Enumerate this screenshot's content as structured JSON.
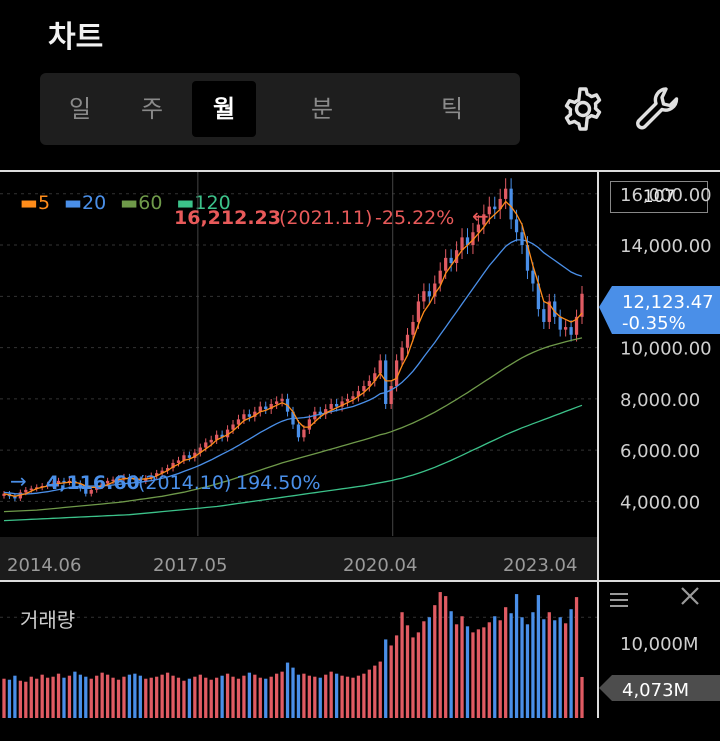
{
  "header": {
    "title": "차트"
  },
  "period_tabs": [
    {
      "label": "일",
      "active": false
    },
    {
      "label": "주",
      "active": false
    },
    {
      "label": "월",
      "active": true
    },
    {
      "label": "분",
      "active": false
    },
    {
      "label": "틱",
      "active": false
    }
  ],
  "icons": {
    "settings": "gear-icon",
    "tools": "wrench-icon"
  },
  "visible_count": "107",
  "legend": [
    {
      "label": "5",
      "color": "#ff8c1a"
    },
    {
      "label": "20",
      "color": "#4a8fe8"
    },
    {
      "label": "60",
      "color": "#6f9a4a"
    },
    {
      "label": "120",
      "color": "#3cc28a"
    }
  ],
  "max_marker": {
    "value": "16,212.23",
    "date": "(2021.11)",
    "change": "-25.22%",
    "arrow": "←"
  },
  "min_marker": {
    "value": "4,116.60",
    "date": "(2014.10)",
    "change": "194.50%",
    "arrow": "→"
  },
  "current_price": {
    "value": "12,123.47",
    "change": "-0.35%"
  },
  "volume": {
    "label": "거래량",
    "axis_tick": "10,000M",
    "current": "4,073M"
  },
  "chart_data": {
    "type": "candlestick",
    "y_ticks": [
      "16,000.00",
      "14,000.00",
      "12,000.00",
      "10,000.00",
      "8,000.00",
      "6,000.00",
      "4,000.00"
    ],
    "y_tick_values": [
      16000,
      14000,
      12000,
      10000,
      8000,
      6000,
      4000
    ],
    "ylim": [
      2650,
      16850
    ],
    "x_labels": [
      "2014.06",
      "2017.05",
      "2020.04",
      "2023.04"
    ],
    "x_label_index": [
      0,
      35,
      70,
      106
    ],
    "close": [
      4300,
      4200,
      4116,
      4350,
      4450,
      4500,
      4550,
      4600,
      4650,
      4700,
      4800,
      4750,
      4800,
      4700,
      4500,
      4300,
      4450,
      4600,
      4700,
      4800,
      4850,
      4900,
      4950,
      4900,
      4850,
      4800,
      4900,
      5000,
      5100,
      5200,
      5300,
      5500,
      5600,
      5800,
      5700,
      5900,
      6100,
      6300,
      6400,
      6600,
      6500,
      6800,
      7000,
      7200,
      7400,
      7300,
      7500,
      7700,
      7600,
      7800,
      7900,
      8000,
      7500,
      7000,
      6500,
      6800,
      7200,
      7500,
      7400,
      7600,
      7800,
      7700,
      7900,
      8000,
      8100,
      8300,
      8500,
      8700,
      9000,
      9500,
      7800,
      8500,
      9500,
      10000,
      10500,
      11000,
      11800,
      12200,
      12000,
      12500,
      13000,
      13500,
      13300,
      13800,
      14300,
      14000,
      14500,
      14800,
      15200,
      15500,
      15400,
      15800,
      16200,
      15000,
      14500,
      14000,
      13000,
      12500,
      11500,
      11000,
      11800,
      11200,
      10700,
      10800,
      10500,
      11200,
      12100
    ],
    "ma5": [
      4300,
      4250,
      4200,
      4250,
      4300,
      4400,
      4500,
      4550,
      4600,
      4650,
      4700,
      4720,
      4750,
      4740,
      4700,
      4600,
      4550,
      4550,
      4600,
      4650,
      4750,
      4850,
      4880,
      4900,
      4880,
      4860,
      4880,
      4900,
      5000,
      5100,
      5200,
      5350,
      5450,
      5600,
      5650,
      5750,
      5900,
      6050,
      6200,
      6400,
      6500,
      6600,
      6750,
      6950,
      7150,
      7250,
      7350,
      7500,
      7550,
      7650,
      7750,
      7850,
      7750,
      7500,
      7100,
      6900,
      6900,
      7100,
      7300,
      7450,
      7550,
      7650,
      7750,
      7850,
      7950,
      8100,
      8250,
      8450,
      8700,
      9000,
      8700,
      8700,
      8800,
      9300,
      9700,
      10300,
      10900,
      11400,
      11700,
      12100,
      12400,
      12900,
      13200,
      13500,
      13800,
      14000,
      14200,
      14450,
      14700,
      15000,
      15200,
      15400,
      15700,
      15500,
      15200,
      14800,
      14000,
      13200,
      12500,
      11800,
      11700,
      11400,
      11200,
      11100,
      11000,
      11100,
      11350
    ],
    "ma20": [
      4350,
      4330,
      4300,
      4290,
      4290,
      4300,
      4320,
      4350,
      4380,
      4420,
      4460,
      4500,
      4540,
      4570,
      4590,
      4600,
      4600,
      4600,
      4610,
      4620,
      4640,
      4660,
      4690,
      4710,
      4730,
      4750,
      4780,
      4810,
      4850,
      4900,
      4950,
      5020,
      5090,
      5170,
      5250,
      5330,
      5420,
      5520,
      5620,
      5730,
      5840,
      5950,
      6060,
      6180,
      6310,
      6430,
      6560,
      6690,
      6800,
      6920,
      7030,
      7130,
      7200,
      7240,
      7250,
      7270,
      7300,
      7350,
      7400,
      7450,
      7500,
      7550,
      7600,
      7650,
      7700,
      7780,
      7860,
      7950,
      8060,
      8200,
      8250,
      8350,
      8480,
      8650,
      8850,
      9080,
      9350,
      9640,
      9920,
      10200,
      10500,
      10800,
      11100,
      11400,
      11700,
      12000,
      12300,
      12600,
      12900,
      13200,
      13450,
      13700,
      13950,
      14100,
      14200,
      14200,
      14150,
      14050,
      13900,
      13700,
      13550,
      13400,
      13250,
      13100,
      12950,
      12850,
      12780
    ],
    "ma60": [
      3600,
      3610,
      3620,
      3630,
      3640,
      3650,
      3660,
      3680,
      3700,
      3720,
      3740,
      3760,
      3780,
      3800,
      3820,
      3840,
      3860,
      3880,
      3900,
      3920,
      3940,
      3960,
      3990,
      4020,
      4050,
      4080,
      4110,
      4140,
      4170,
      4200,
      4240,
      4280,
      4320,
      4360,
      4410,
      4460,
      4510,
      4560,
      4620,
      4680,
      4740,
      4800,
      4870,
      4940,
      5010,
      5080,
      5150,
      5220,
      5290,
      5360,
      5430,
      5500,
      5560,
      5620,
      5680,
      5740,
      5800,
      5860,
      5920,
      5980,
      6040,
      6100,
      6160,
      6220,
      6280,
      6340,
      6400,
      6460,
      6530,
      6600,
      6650,
      6720,
      6800,
      6880,
      6970,
      7060,
      7160,
      7260,
      7370,
      7480,
      7600,
      7720,
      7850,
      7980,
      8110,
      8240,
      8380,
      8520,
      8660,
      8800,
      8940,
      9080,
      9220,
      9350,
      9480,
      9600,
      9710,
      9810,
      9900,
      9980,
      10050,
      10110,
      10170,
      10230,
      10280,
      10330,
      10380
    ],
    "ma120": [
      3250,
      3260,
      3270,
      3280,
      3290,
      3300,
      3310,
      3320,
      3330,
      3340,
      3350,
      3360,
      3370,
      3380,
      3390,
      3400,
      3410,
      3420,
      3430,
      3440,
      3450,
      3460,
      3470,
      3480,
      3500,
      3520,
      3540,
      3560,
      3580,
      3600,
      3620,
      3640,
      3660,
      3680,
      3700,
      3720,
      3740,
      3760,
      3780,
      3800,
      3830,
      3860,
      3890,
      3920,
      3950,
      3980,
      4010,
      4040,
      4070,
      4100,
      4130,
      4160,
      4190,
      4220,
      4250,
      4280,
      4310,
      4340,
      4370,
      4400,
      4430,
      4460,
      4490,
      4520,
      4550,
      4580,
      4610,
      4650,
      4690,
      4730,
      4770,
      4810,
      4860,
      4910,
      4970,
      5030,
      5100,
      5170,
      5250,
      5330,
      5420,
      5510,
      5600,
      5700,
      5800,
      5900,
      6000,
      6100,
      6200,
      6300,
      6400,
      6500,
      6600,
      6690,
      6780,
      6870,
      6950,
      7030,
      7110,
      7190,
      7270,
      7350,
      7430,
      7510,
      7590,
      7670,
      7750
    ],
    "volume_ylim": [
      0,
      13500
    ],
    "volume": [
      3900,
      3800,
      4200,
      3700,
      3600,
      4100,
      3900,
      4300,
      4000,
      4100,
      4400,
      4000,
      4200,
      4600,
      4300,
      4100,
      3900,
      4200,
      4500,
      4300,
      4000,
      3800,
      4100,
      4300,
      4400,
      4200,
      3900,
      4000,
      4100,
      4300,
      4500,
      4200,
      4000,
      3700,
      3900,
      4100,
      4300,
      4000,
      3800,
      4000,
      4200,
      4400,
      4100,
      3900,
      4200,
      4500,
      4300,
      4000,
      3900,
      4100,
      4400,
      4600,
      5500,
      5000,
      4300,
      4400,
      4200,
      4100,
      4000,
      4300,
      4600,
      4400,
      4200,
      4100,
      4000,
      4200,
      4400,
      4800,
      5200,
      5600,
      7800,
      7200,
      8200,
      10500,
      9200,
      8000,
      8500,
      9600,
      10000,
      11200,
      12500,
      12100,
      10600,
      9300,
      10100,
      9100,
      8500,
      8800,
      9000,
      9500,
      10100,
      9700,
      11000,
      10400,
      12300,
      10000,
      9300,
      10500,
      12200,
      9800,
      10500,
      9700,
      10000,
      9400,
      10800,
      12000,
      4073
    ]
  }
}
